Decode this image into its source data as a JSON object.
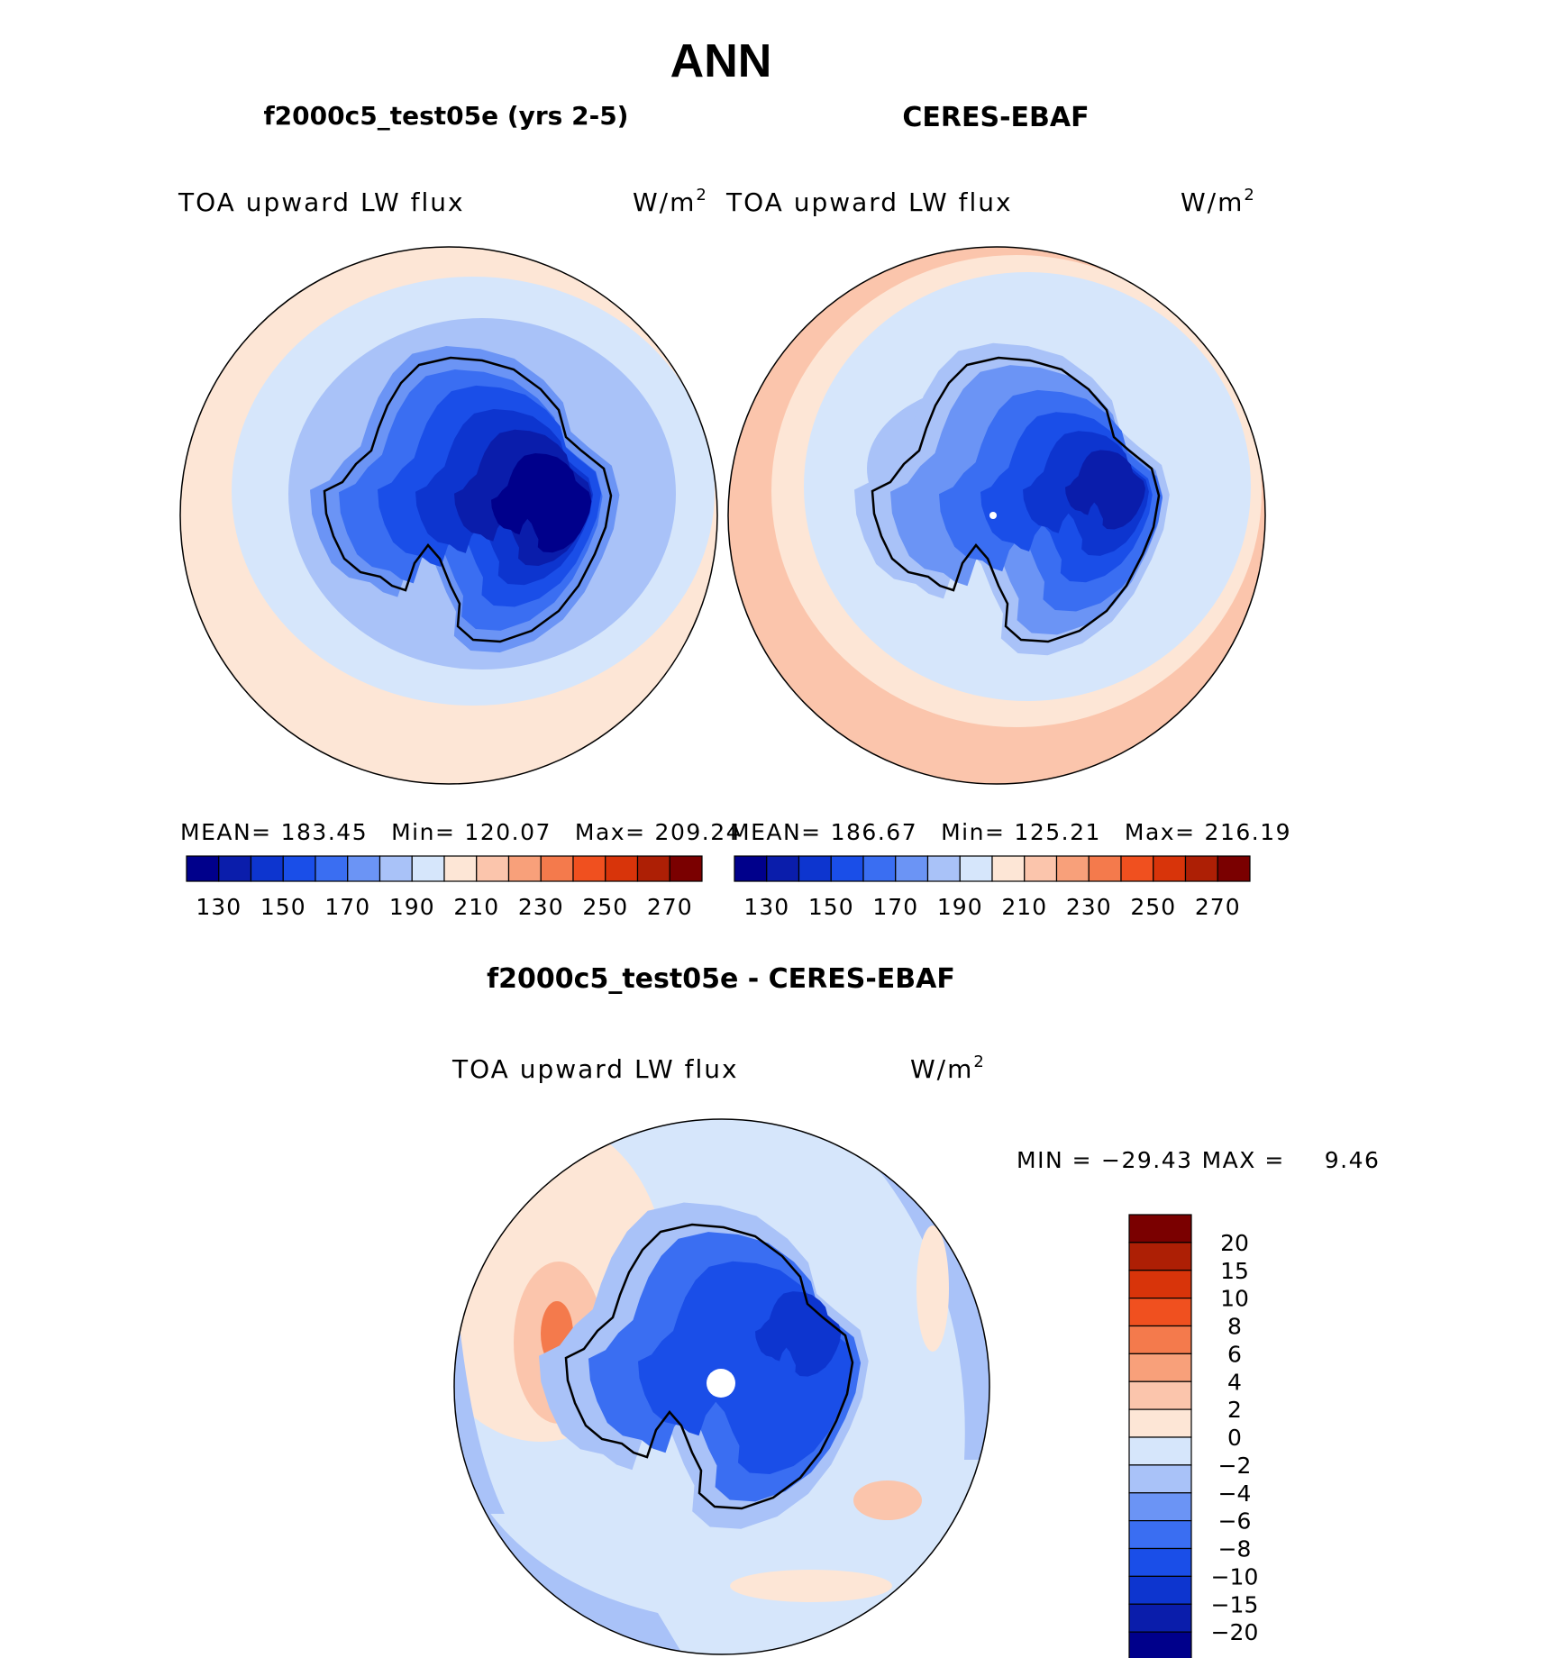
{
  "figure": {
    "title": "ANN"
  },
  "panels": [
    {
      "title": "f2000c5_test05e (yrs 2-5)",
      "variable": "TOA upward LW flux",
      "units_base": "W/m",
      "units_exp": "2",
      "stats": {
        "mean_label": "MEAN=",
        "mean": "183.45",
        "min_label": "Min=",
        "min": "120.07",
        "max_label": "Max=",
        "max": "209.24"
      }
    },
    {
      "title": "CERES-EBAF",
      "variable": "TOA upward LW flux",
      "units_base": "W/m",
      "units_exp": "2",
      "stats": {
        "mean_label": "MEAN=",
        "mean": "186.67",
        "min_label": "Min=",
        "min": "125.21",
        "max_label": "Max=",
        "max": "216.19"
      }
    },
    {
      "title": "f2000c5_test05e - CERES-EBAF",
      "variable": "TOA upward LW flux",
      "units_base": "W/m",
      "units_exp": "2",
      "stats": {
        "min_label": "MIN =",
        "min": "−29.43",
        "max_label": "MAX =",
        "max": "9.46"
      }
    }
  ],
  "colorbars": {
    "absolute": {
      "colors": [
        "#00008b",
        "#0a1dab",
        "#0d35cf",
        "#1a4ee8",
        "#3a6ef2",
        "#6b94f5",
        "#a9c2f8",
        "#d6e6fb",
        "#fde6d6",
        "#fbc5ac",
        "#f8a07a",
        "#f47a4c",
        "#f0501f",
        "#d8340a",
        "#ad1f05",
        "#7a0000"
      ],
      "tick_labels": [
        "130",
        "150",
        "170",
        "190",
        "210",
        "230",
        "250",
        "270"
      ]
    },
    "difference": {
      "colors": [
        "#00008b",
        "#0a1dab",
        "#0d35cf",
        "#1a4ee8",
        "#3a6ef2",
        "#6b94f5",
        "#a9c2f8",
        "#d6e6fb",
        "#fde6d6",
        "#fbc5ac",
        "#f8a07a",
        "#f47a4c",
        "#f0501f",
        "#d8340a",
        "#ad1f05",
        "#7a0000"
      ],
      "tick_labels": [
        "−20",
        "−15",
        "−10",
        "−8",
        "−6",
        "−4",
        "−2",
        "0",
        "2",
        "4",
        "6",
        "8",
        "10",
        "15",
        "20"
      ]
    }
  },
  "colors": {
    "ocean_warm": "#fde6d6",
    "ocean_warm2": "#fbc5ac",
    "ocean_cool": "#d6e6fb",
    "ocean_cool2": "#a9c2f8",
    "coast": "#000000"
  }
}
